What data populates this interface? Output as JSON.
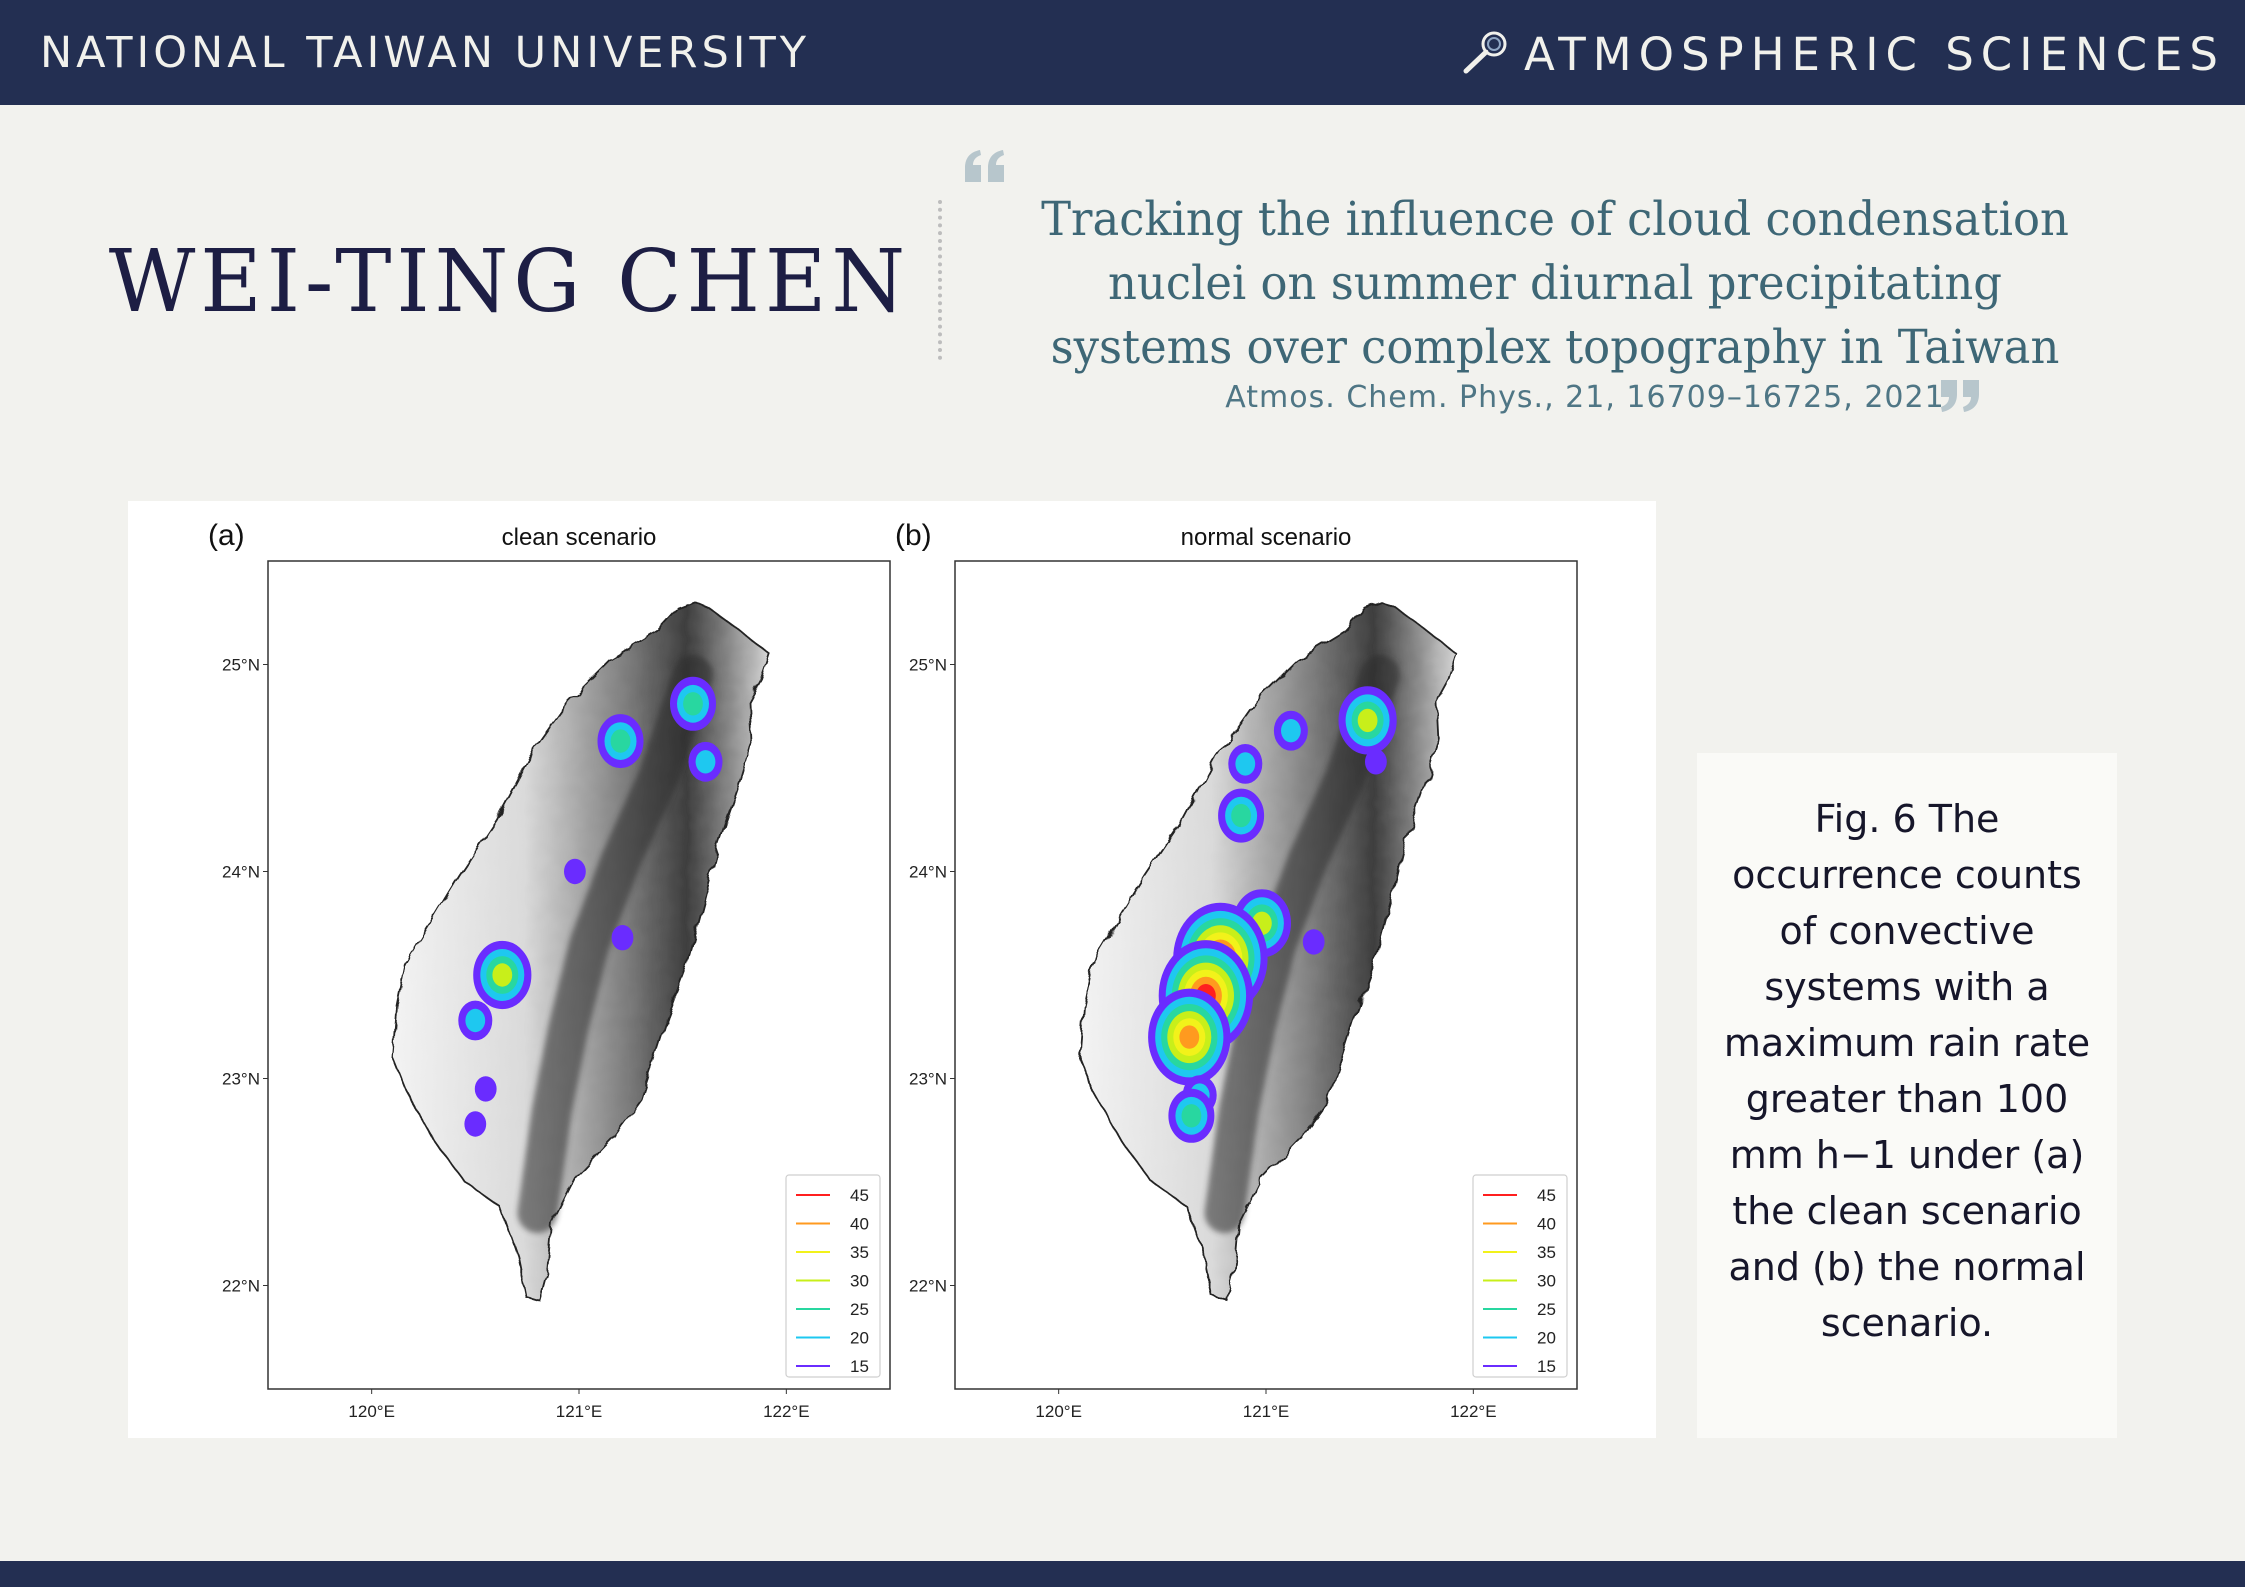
{
  "header": {
    "institution": "NATIONAL TAIWAN UNIVERSITY",
    "department": "ATMOSPHERIC SCIENCES",
    "department_icon": "magnifier-icon"
  },
  "author": "WEI-TING CHEN",
  "paper": {
    "title": "Tracking the influence of cloud condensation nuclei on summer diurnal precipitating systems over complex topography in Taiwan",
    "citation": "Atmos. Chem. Phys., 21, 16709–16725, 2021"
  },
  "caption": "Fig. 6 The occurrence counts of convective systems with a maximum rain rate greater than 100 mm h−1 under (a) the clean scenario and (b) the normal scenario.",
  "colors": {
    "banner": "#232f52",
    "background": "#f2f2ee",
    "title": "#3e6776",
    "author": "#1d1e44"
  },
  "chart_data": [
    {
      "type": "map",
      "panel_label": "(a)",
      "title": "clean scenario",
      "x_tick_labels": [
        "120°E",
        "121°E",
        "122°E"
      ],
      "y_tick_labels": [
        "25°N",
        "24°N",
        "23°N",
        "22°N"
      ],
      "x_ticks": [
        120,
        121,
        122
      ],
      "y_ticks": [
        25,
        24,
        23,
        22
      ],
      "xlim": [
        119.5,
        122.5
      ],
      "ylim": [
        21.5,
        25.5
      ],
      "legend_position": "bottom-right",
      "legend": [
        {
          "value": "45",
          "color": "#ff1f1f"
        },
        {
          "value": "40",
          "color": "#ff9a1f"
        },
        {
          "value": "35",
          "color": "#f2f21a"
        },
        {
          "value": "30",
          "color": "#c8ef1a"
        },
        {
          "value": "25",
          "color": "#28d7a0"
        },
        {
          "value": "20",
          "color": "#1ec8f0"
        },
        {
          "value": "15",
          "color": "#6a2cff"
        }
      ],
      "systems": [
        {
          "lon": 121.2,
          "lat": 24.63,
          "max_count": 25
        },
        {
          "lon": 121.55,
          "lat": 24.81,
          "max_count": 25
        },
        {
          "lon": 121.61,
          "lat": 24.53,
          "max_count": 20
        },
        {
          "lon": 120.98,
          "lat": 24.0,
          "max_count": 15
        },
        {
          "lon": 120.63,
          "lat": 23.5,
          "max_count": 30
        },
        {
          "lon": 120.5,
          "lat": 23.28,
          "max_count": 20
        },
        {
          "lon": 121.21,
          "lat": 23.68,
          "max_count": 15
        },
        {
          "lon": 120.55,
          "lat": 22.95,
          "max_count": 15
        },
        {
          "lon": 120.5,
          "lat": 22.78,
          "max_count": 15
        }
      ]
    },
    {
      "type": "map",
      "panel_label": "(b)",
      "title": "normal scenario",
      "x_tick_labels": [
        "120°E",
        "121°E",
        "122°E"
      ],
      "y_tick_labels": [
        "25°N",
        "24°N",
        "23°N",
        "22°N"
      ],
      "x_ticks": [
        120,
        121,
        122
      ],
      "y_ticks": [
        25,
        24,
        23,
        22
      ],
      "xlim": [
        119.5,
        122.5
      ],
      "ylim": [
        21.5,
        25.5
      ],
      "legend_position": "bottom-right",
      "legend": [
        {
          "value": "45",
          "color": "#ff1f1f"
        },
        {
          "value": "40",
          "color": "#ff9a1f"
        },
        {
          "value": "35",
          "color": "#f2f21a"
        },
        {
          "value": "30",
          "color": "#c8ef1a"
        },
        {
          "value": "25",
          "color": "#28d7a0"
        },
        {
          "value": "20",
          "color": "#1ec8f0"
        },
        {
          "value": "15",
          "color": "#6a2cff"
        }
      ],
      "systems": [
        {
          "lon": 121.49,
          "lat": 24.73,
          "max_count": 30
        },
        {
          "lon": 121.12,
          "lat": 24.68,
          "max_count": 20
        },
        {
          "lon": 121.53,
          "lat": 24.53,
          "max_count": 15
        },
        {
          "lon": 120.9,
          "lat": 24.52,
          "max_count": 20
        },
        {
          "lon": 120.88,
          "lat": 24.27,
          "max_count": 25
        },
        {
          "lon": 120.98,
          "lat": 23.75,
          "max_count": 30
        },
        {
          "lon": 120.78,
          "lat": 23.58,
          "max_count": 45
        },
        {
          "lon": 120.71,
          "lat": 23.4,
          "max_count": 45
        },
        {
          "lon": 120.63,
          "lat": 23.2,
          "max_count": 40
        },
        {
          "lon": 120.68,
          "lat": 22.92,
          "max_count": 20
        },
        {
          "lon": 120.64,
          "lat": 22.82,
          "max_count": 25
        },
        {
          "lon": 121.23,
          "lat": 23.66,
          "max_count": 15
        }
      ]
    }
  ]
}
